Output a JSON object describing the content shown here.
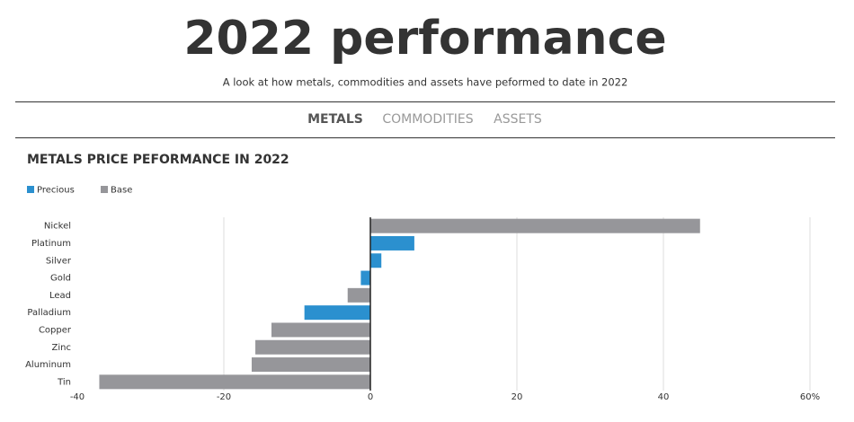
{
  "header": {
    "title": "2022 performance",
    "subtitle": "A look at how metals, commodities and assets have peformed to date in 2022"
  },
  "tabs": [
    "METALS",
    "COMMODITIES",
    "ASSETS"
  ],
  "chart_data": {
    "type": "hbar",
    "title": "METALS PRICE PEFORMANCE IN 2022",
    "categories": [
      "Nickel",
      "Platinum",
      "Silver",
      "Gold",
      "Lead",
      "Palladium",
      "Copper",
      "Zinc",
      "Aluminum",
      "Tin"
    ],
    "series": [
      {
        "name": "Precious",
        "color": "#2b90cf",
        "values": [
          null,
          6,
          1.5,
          -1.3,
          null,
          -9,
          null,
          null,
          null,
          null
        ]
      },
      {
        "name": "Base",
        "color": "#96969a",
        "values": [
          45,
          null,
          null,
          null,
          -3.1,
          null,
          -13.5,
          -15.7,
          -16.2,
          -37
        ]
      }
    ],
    "xlim": [
      -40,
      60
    ],
    "xticks": [
      -40,
      -20,
      0,
      20,
      40,
      {
        "value": 60,
        "label": "60%"
      }
    ],
    "grid": true
  }
}
